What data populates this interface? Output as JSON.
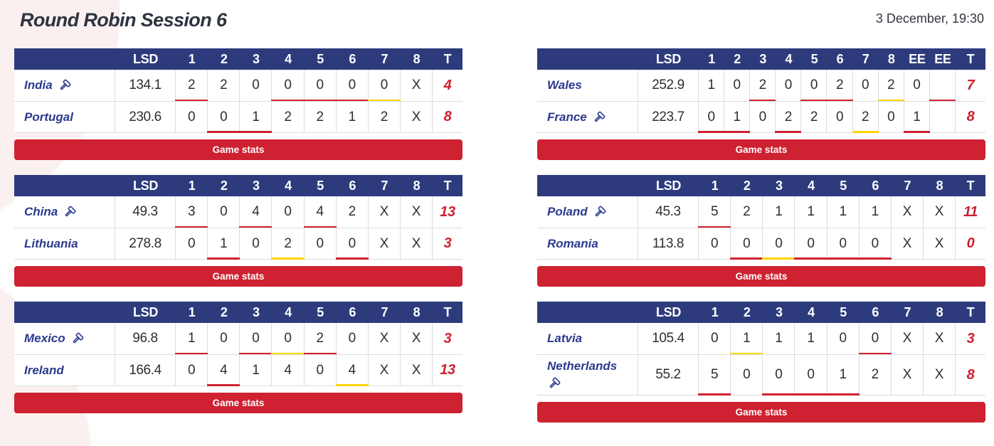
{
  "header": {
    "title": "Round Robin Session 6",
    "date": "3 December, 19:30"
  },
  "labels": {
    "lsd": "LSD",
    "total": "T",
    "game_stats": "Game stats",
    "no_score": "X",
    "extra_end": "EE"
  },
  "colors": {
    "header_bg": "#2d3b7d",
    "team_blue": "#2b3a8e",
    "red": "#ce2131",
    "yellow": "#ffd400"
  },
  "games": [
    {
      "ends": [
        "1",
        "2",
        "3",
        "4",
        "5",
        "6",
        "7",
        "8"
      ],
      "teams": [
        {
          "name": "India",
          "hammer": true,
          "name_wrap": false,
          "lsd": "134.1",
          "scores": [
            "2",
            "2",
            "0",
            "0",
            "0",
            "0",
            "0",
            "X"
          ],
          "total": "4",
          "marks": [
            "red",
            "",
            "",
            "red",
            "red",
            "red",
            "yellow",
            ""
          ]
        },
        {
          "name": "Portugal",
          "hammer": false,
          "name_wrap": false,
          "lsd": "230.6",
          "scores": [
            "0",
            "0",
            "1",
            "2",
            "2",
            "1",
            "2",
            "X"
          ],
          "total": "8",
          "marks": [
            "",
            "red",
            "red",
            "",
            "",
            "",
            "",
            ""
          ]
        }
      ]
    },
    {
      "ends": [
        "1",
        "2",
        "3",
        "4",
        "5",
        "6",
        "7",
        "8",
        "EE",
        "EE"
      ],
      "teams": [
        {
          "name": "Wales",
          "hammer": false,
          "name_wrap": false,
          "lsd": "252.9",
          "scores": [
            "1",
            "0",
            "2",
            "0",
            "0",
            "2",
            "0",
            "2",
            "0",
            ""
          ],
          "total": "7",
          "marks": [
            "",
            "",
            "red",
            "",
            "red",
            "red",
            "",
            "yellow",
            "",
            "red"
          ]
        },
        {
          "name": "France",
          "hammer": true,
          "name_wrap": false,
          "lsd": "223.7",
          "scores": [
            "0",
            "1",
            "0",
            "2",
            "2",
            "0",
            "2",
            "0",
            "1",
            ""
          ],
          "total": "8",
          "marks": [
            "red",
            "red",
            "",
            "red",
            "",
            "",
            "yellow",
            "",
            "red",
            ""
          ]
        }
      ]
    },
    {
      "ends": [
        "1",
        "2",
        "3",
        "4",
        "5",
        "6",
        "7",
        "8"
      ],
      "teams": [
        {
          "name": "China",
          "hammer": true,
          "name_wrap": false,
          "lsd": "49.3",
          "scores": [
            "3",
            "0",
            "4",
            "0",
            "4",
            "2",
            "X",
            "X"
          ],
          "total": "13",
          "marks": [
            "red",
            "",
            "red",
            "",
            "red",
            "",
            "",
            ""
          ]
        },
        {
          "name": "Lithuania",
          "hammer": false,
          "name_wrap": false,
          "lsd": "278.8",
          "scores": [
            "0",
            "1",
            "0",
            "2",
            "0",
            "0",
            "X",
            "X"
          ],
          "total": "3",
          "marks": [
            "",
            "red",
            "",
            "yellow",
            "",
            "red",
            "",
            ""
          ]
        }
      ]
    },
    {
      "ends": [
        "1",
        "2",
        "3",
        "4",
        "5",
        "6",
        "7",
        "8"
      ],
      "teams": [
        {
          "name": "Poland",
          "hammer": true,
          "name_wrap": false,
          "lsd": "45.3",
          "scores": [
            "5",
            "2",
            "1",
            "1",
            "1",
            "1",
            "X",
            "X"
          ],
          "total": "11",
          "marks": [
            "red",
            "",
            "",
            "",
            "",
            "",
            "",
            ""
          ]
        },
        {
          "name": "Romania",
          "hammer": false,
          "name_wrap": false,
          "lsd": "113.8",
          "scores": [
            "0",
            "0",
            "0",
            "0",
            "0",
            "0",
            "X",
            "X"
          ],
          "total": "0",
          "marks": [
            "",
            "red",
            "yellow",
            "red",
            "red",
            "red",
            "",
            ""
          ]
        }
      ]
    },
    {
      "ends": [
        "1",
        "2",
        "3",
        "4",
        "5",
        "6",
        "7",
        "8"
      ],
      "teams": [
        {
          "name": "Mexico",
          "hammer": true,
          "name_wrap": false,
          "lsd": "96.8",
          "scores": [
            "1",
            "0",
            "0",
            "0",
            "2",
            "0",
            "X",
            "X"
          ],
          "total": "3",
          "marks": [
            "red",
            "",
            "red",
            "yellow",
            "red",
            "",
            "",
            ""
          ]
        },
        {
          "name": "Ireland",
          "hammer": false,
          "name_wrap": false,
          "lsd": "166.4",
          "scores": [
            "0",
            "4",
            "1",
            "4",
            "0",
            "4",
            "X",
            "X"
          ],
          "total": "13",
          "marks": [
            "",
            "red",
            "",
            "",
            "",
            "yellow",
            "",
            ""
          ]
        }
      ]
    },
    {
      "ends": [
        "1",
        "2",
        "3",
        "4",
        "5",
        "6",
        "7",
        "8"
      ],
      "teams": [
        {
          "name": "Latvia",
          "hammer": false,
          "name_wrap": false,
          "lsd": "105.4",
          "scores": [
            "0",
            "1",
            "1",
            "1",
            "0",
            "0",
            "X",
            "X"
          ],
          "total": "3",
          "marks": [
            "",
            "yellow",
            "",
            "",
            "",
            "red",
            "",
            ""
          ]
        },
        {
          "name": "Netherlands",
          "hammer": true,
          "name_wrap": true,
          "lsd": "55.2",
          "scores": [
            "5",
            "0",
            "0",
            "0",
            "1",
            "2",
            "X",
            "X"
          ],
          "total": "8",
          "marks": [
            "red",
            "",
            "red",
            "red",
            "red",
            "",
            "",
            ""
          ]
        }
      ]
    }
  ]
}
